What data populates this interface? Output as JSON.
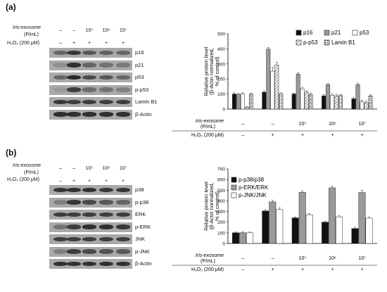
{
  "panels": [
    {
      "label": "(a)",
      "conditions": {
        "iris_label": "Iris-exosome",
        "iris_unit": "(P/mL)",
        "h2o2_label": "H₂O₂ (200 μM)",
        "iris_values": [
          "–",
          "–",
          "10⁵",
          "10⁶",
          "10⁷"
        ],
        "h2o2_values": [
          "–",
          "+",
          "+",
          "+",
          "+"
        ]
      },
      "blot_labels": [
        "p16",
        "p21",
        "p53",
        "p-p53",
        "Lamin B1",
        "β-Actin"
      ],
      "chart_data": {
        "type": "bar",
        "ylabel": "Relative protein level (β-Actin normalized, % of control)",
        "ylim": [
          0,
          500
        ],
        "yticks": [
          "0",
          "100",
          "200",
          "300",
          "400",
          "500"
        ],
        "groups": 5,
        "x_table": {
          "iris_label": "Iris-exosome",
          "iris_unit": "(P/mL)",
          "h2o2_label": "H₂O₂ (200 μM)",
          "iris_values": [
            "–",
            "–",
            "10⁵",
            "10⁶",
            "10⁷"
          ],
          "h2o2_values": [
            "–",
            "+",
            "+",
            "+",
            "+"
          ]
        },
        "series": [
          {
            "name": "p16",
            "color": "#111111",
            "pattern": "solid",
            "values": [
              100,
              112,
              100,
              88,
              68
            ],
            "errors": [
              8,
              8,
              6,
              8,
              8
            ]
          },
          {
            "name": "p21",
            "color": "#9a9a9a",
            "pattern": "solid",
            "values": [
              98,
              398,
              232,
              162,
              162
            ],
            "errors": [
              6,
              12,
              10,
              10,
              10
            ]
          },
          {
            "name": "p53",
            "color": "#ffffff",
            "pattern": "solid",
            "values": [
              100,
              252,
              135,
              92,
              48
            ],
            "errors": [
              8,
              25,
              10,
              10,
              10
            ]
          },
          {
            "name": "p-p53",
            "color": "#ffffff",
            "pattern": "diagonal",
            "values": [
              12,
              292,
              112,
              88,
              42
            ],
            "errors": [
              4,
              20,
              10,
              10,
              10
            ]
          },
          {
            "name": "Lamin B1",
            "color": "#ffffff",
            "pattern": "grid",
            "values": [
              100,
              102,
              98,
              92,
              88
            ],
            "errors": [
              5,
              6,
              6,
              6,
              6
            ]
          }
        ],
        "legend": "top-right"
      }
    },
    {
      "label": "(b)",
      "conditions": {
        "iris_label": "Iris-exosome",
        "iris_unit": "(P/mL)",
        "h2o2_label": "H₂O₂ (200 μM)",
        "iris_values": [
          "–",
          "–",
          "10⁵",
          "10⁶",
          "10⁷"
        ],
        "h2o2_values": [
          "–",
          "+",
          "+",
          "+",
          "+"
        ]
      },
      "blot_labels": [
        "p38",
        "p-p38",
        "ERK",
        "p-ERK",
        "JNK",
        "p-JNK",
        "β-Actin"
      ],
      "chart_data": {
        "type": "bar",
        "ylabel": "Relative protein level (β-Actin normalized, % of control)",
        "ylim": [
          0,
          700
        ],
        "yticks": [
          "0",
          "100",
          "200",
          "300",
          "400",
          "500",
          "600",
          "700"
        ],
        "groups": 5,
        "x_table": {
          "iris_label": "Iris-exosome",
          "iris_unit": "(P/mL)",
          "h2o2_label": "H₂O₂ (200 μM)",
          "iris_values": [
            "–",
            "–",
            "10⁵",
            "10⁶",
            "10⁷"
          ],
          "h2o2_values": [
            "–",
            "+",
            "+",
            "+",
            "+"
          ]
        },
        "series": [
          {
            "name": "p-p38/p38",
            "color": "#111111",
            "pattern": "solid",
            "values": [
              100,
              305,
              240,
              200,
              140
            ],
            "errors": [
              8,
              12,
              8,
              8,
              12
            ]
          },
          {
            "name": "p-ERK/ERK",
            "color": "#9a9a9a",
            "pattern": "solid",
            "values": [
              100,
              390,
              480,
              522,
              478
            ],
            "errors": [
              10,
              15,
              12,
              18,
              20
            ]
          },
          {
            "name": "p-JNK/JNK",
            "color": "#ffffff",
            "pattern": "solid",
            "values": [
              100,
              318,
              270,
              250,
              238
            ],
            "errors": [
              8,
              15,
              12,
              10,
              8
            ]
          }
        ],
        "legend": "top-left"
      }
    }
  ],
  "colors": {
    "blot_bg": "#a9a9a9",
    "band": "#222222"
  }
}
